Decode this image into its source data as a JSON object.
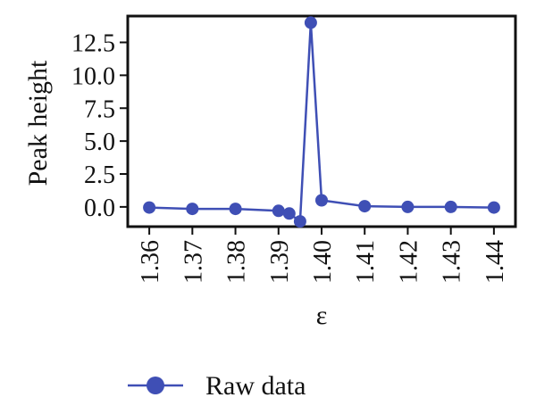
{
  "chart_data": {
    "type": "line",
    "xlabel": "ε",
    "ylabel": "Peak height",
    "xlim": [
      1.355,
      1.445
    ],
    "ylim": [
      -1.5,
      14.5
    ],
    "x_ticks": [
      1.36,
      1.37,
      1.38,
      1.39,
      1.4,
      1.41,
      1.42,
      1.43,
      1.44
    ],
    "x_tick_labels": [
      "1.36",
      "1.37",
      "1.38",
      "1.39",
      "1.40",
      "1.41",
      "1.42",
      "1.43",
      "1.44"
    ],
    "y_ticks": [
      0,
      2.5,
      5,
      7.5,
      10,
      12.5
    ],
    "y_tick_labels": [
      "0.0",
      "2.5",
      "5.0",
      "7.5",
      "10.0",
      "12.5"
    ],
    "grid": false,
    "legend_position": "bottom",
    "series": [
      {
        "name": "Raw data",
        "color": "#3f4fb5",
        "marker": "circle",
        "x": [
          1.36,
          1.37,
          1.38,
          1.39,
          1.3925,
          1.395,
          1.3975,
          1.4,
          1.41,
          1.42,
          1.43,
          1.44
        ],
        "y": [
          -0.05,
          -0.15,
          -0.15,
          -0.3,
          -0.5,
          -1.1,
          14.0,
          0.5,
          0.05,
          0.0,
          0.0,
          -0.05
        ]
      }
    ]
  },
  "legend": {
    "label": "Raw data"
  }
}
